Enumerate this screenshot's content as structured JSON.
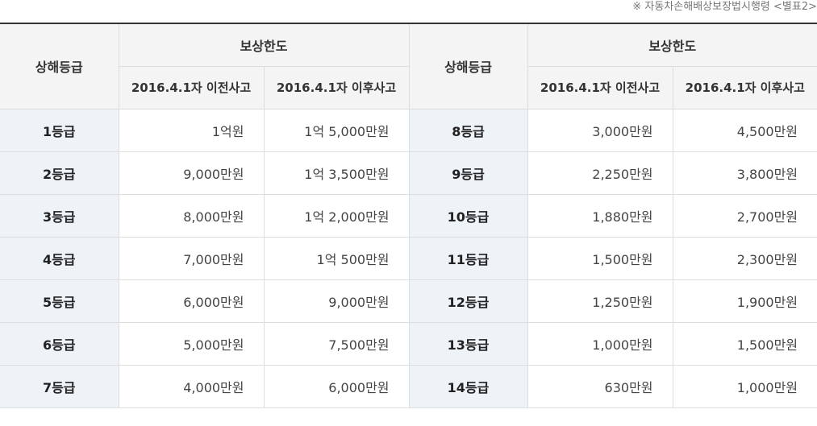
{
  "source_note": "※ 자동차손해배상보장법시행령 <별표2>",
  "table": {
    "header": {
      "grade": "상해등급",
      "limit": "보상한도",
      "before": "2016.4.1자 이전사고",
      "after": "2016.4.1자 이후사고"
    },
    "left_rows": [
      {
        "grade": "1등급",
        "before": "1억원",
        "after": "1억 5,000만원"
      },
      {
        "grade": "2등급",
        "before": "9,000만원",
        "after": "1억 3,500만원"
      },
      {
        "grade": "3등급",
        "before": "8,000만원",
        "after": "1억 2,000만원"
      },
      {
        "grade": "4등급",
        "before": "7,000만원",
        "after": "1억 500만원"
      },
      {
        "grade": "5등급",
        "before": "6,000만원",
        "after": "9,000만원"
      },
      {
        "grade": "6등급",
        "before": "5,000만원",
        "after": "7,500만원"
      },
      {
        "grade": "7등급",
        "before": "4,000만원",
        "after": "6,000만원"
      }
    ],
    "right_rows": [
      {
        "grade": "8등급",
        "before": "3,000만원",
        "after": "4,500만원"
      },
      {
        "grade": "9등급",
        "before": "2,250만원",
        "after": "3,800만원"
      },
      {
        "grade": "10등급",
        "before": "1,880만원",
        "after": "2,700만원"
      },
      {
        "grade": "11등급",
        "before": "1,500만원",
        "after": "2,300만원"
      },
      {
        "grade": "12등급",
        "before": "1,250만원",
        "after": "1,900만원"
      },
      {
        "grade": "13등급",
        "before": "1,000만원",
        "after": "1,500만원"
      },
      {
        "grade": "14등급",
        "before": "630만원",
        "after": "1,000만원"
      }
    ]
  }
}
